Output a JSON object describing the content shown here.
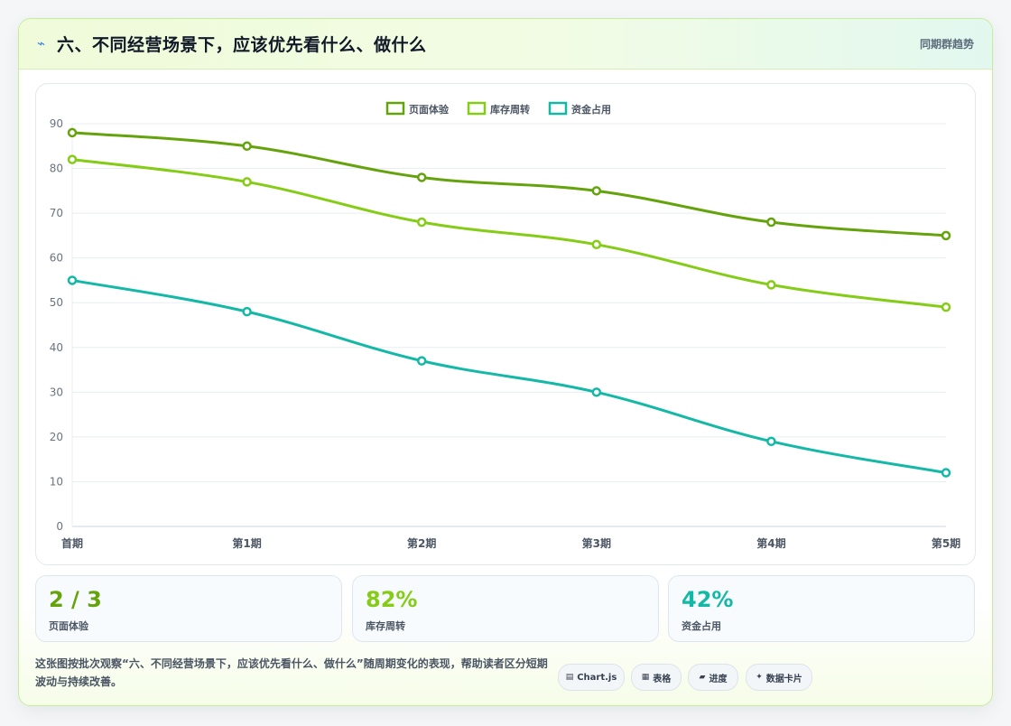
{
  "header": {
    "icon": "lightning-icon",
    "title": "六、不同经营场景下，应该优先看什么、做什么",
    "link": "同期群趋势"
  },
  "chart_data": {
    "type": "line",
    "categories": [
      "首期",
      "第1期",
      "第2期",
      "第3期",
      "第4期",
      "第5期"
    ],
    "series": [
      {
        "name": "页面体验",
        "color": "#65a30d",
        "values": [
          88,
          85,
          78,
          75,
          68,
          65
        ]
      },
      {
        "name": "库存周转",
        "color": "#84cc16",
        "values": [
          82,
          77,
          68,
          63,
          54,
          49
        ]
      },
      {
        "name": "资金占用",
        "color": "#14b8a6",
        "values": [
          55,
          48,
          37,
          30,
          19,
          12
        ]
      }
    ],
    "ylim": [
      0,
      90
    ],
    "yticks": [
      0,
      10,
      20,
      30,
      40,
      50,
      60,
      70,
      80,
      90
    ],
    "legend_position": "top-center",
    "grid": true
  },
  "stats": [
    {
      "value": "2 / 3",
      "label": "页面体验",
      "color": "#65a30d"
    },
    {
      "value": "82%",
      "label": "库存周转",
      "color": "#84cc16"
    },
    {
      "value": "42%",
      "label": "资金占用",
      "color": "#14b8a6"
    }
  ],
  "footer": {
    "note": "这张图按批次观察“六、不同经营场景下，应该优先看什么、做什么”随周期变化的表现，帮助读者区分短期波动与持续改善。",
    "pills": [
      {
        "icon": "chart-icon",
        "glyph": "▤",
        "label": "Chart.js"
      },
      {
        "icon": "table-icon",
        "glyph": "▦",
        "label": "表格"
      },
      {
        "icon": "progress-icon",
        "glyph": "▰",
        "label": "进度"
      },
      {
        "icon": "sparkle-icon",
        "glyph": "✦",
        "label": "数据卡片"
      }
    ]
  }
}
